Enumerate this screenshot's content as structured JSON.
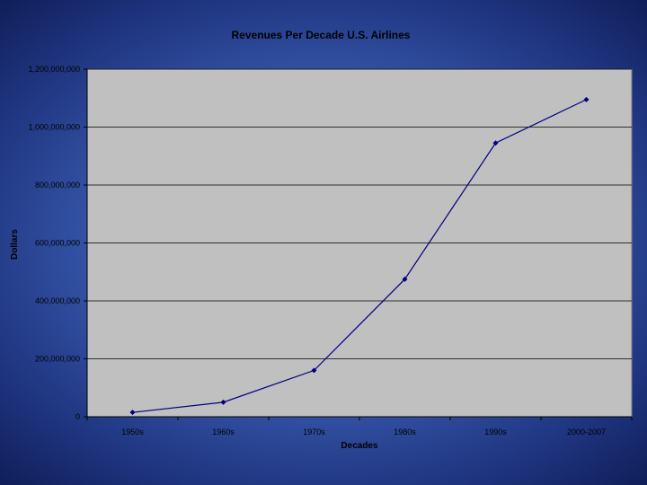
{
  "chart_data": {
    "type": "line",
    "title": "Revenues Per Decade U.S. Airlines",
    "xlabel": "Decades",
    "ylabel": "Dollars",
    "categories": [
      "1950s",
      "1960s",
      "1970s",
      "1980s",
      "1990s",
      "2000-2007"
    ],
    "series": [
      {
        "values": [
          15000000,
          50000000,
          160000000,
          475000000,
          945000000,
          1095000000
        ]
      }
    ],
    "ylim": [
      0,
      1200000000
    ],
    "yticks": [
      0,
      200000000,
      400000000,
      600000000,
      800000000,
      1000000000,
      1200000000
    ],
    "ytick_labels": [
      "0",
      "200,000,000",
      "400,000,000",
      "600,000,000",
      "800,000,000",
      "1,000,000,000",
      "1,200,000,000"
    ],
    "grid": "horizontal",
    "legend": "none",
    "colors": {
      "plot_background": "#c0c0c0",
      "line": "#000080",
      "gridline": "#000000"
    }
  }
}
